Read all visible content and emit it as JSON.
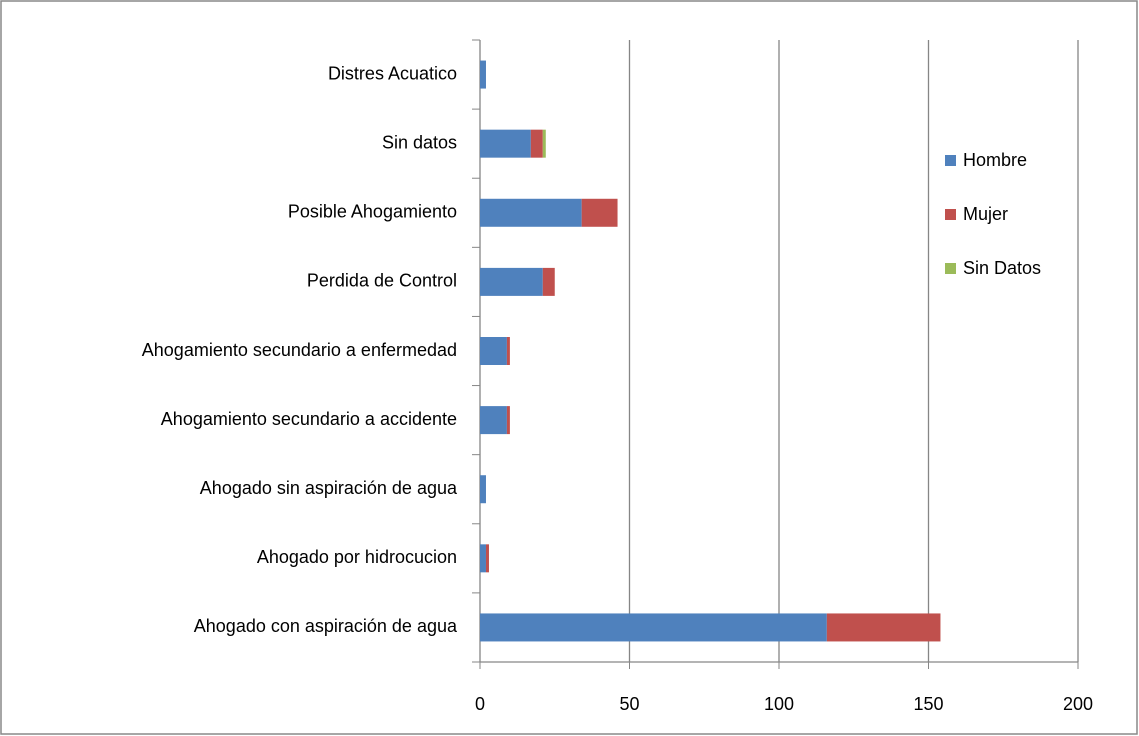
{
  "chart_data": {
    "type": "stacked-barh",
    "categories": [
      "Distres Acuatico",
      "Sin datos",
      "Posible Ahogamiento",
      "Perdida de Control",
      "Ahogamiento secundario a enfermedad",
      "Ahogamiento secundario a accidente",
      "Ahogado sin aspiración de agua",
      "Ahogado por hidrocucion",
      "Ahogado con aspiración de agua"
    ],
    "series": [
      {
        "name": "Hombre",
        "color": "#4f81bd",
        "values": [
          2,
          17,
          34,
          21,
          9,
          9,
          2,
          2,
          116
        ]
      },
      {
        "name": "Mujer",
        "color": "#c0504d",
        "values": [
          0,
          4,
          12,
          4,
          1,
          1,
          0,
          1,
          38
        ]
      },
      {
        "name": "Sin Datos",
        "color": "#9bbb59",
        "values": [
          0,
          1,
          0,
          0,
          0,
          0,
          0,
          0,
          0
        ]
      }
    ],
    "xlim": [
      0,
      200
    ],
    "xticks": [
      0,
      50,
      100,
      150,
      200
    ],
    "grid": true,
    "legend": "right"
  }
}
